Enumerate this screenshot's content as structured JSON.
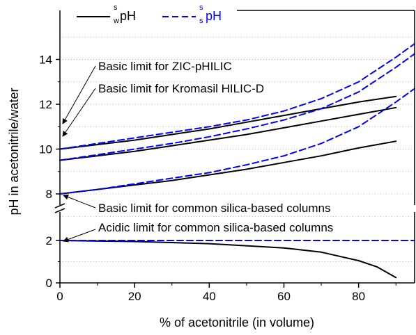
{
  "chart_data": {
    "type": "line",
    "xlabel": "% of acetonitrile (in volume)",
    "ylabel": "pH in acetonitrile/water",
    "xlim": [
      0,
      95
    ],
    "x_ticks": [
      "0",
      "20",
      "40",
      "60",
      "80"
    ],
    "y_ticks_upper": [
      "8",
      "10",
      "12",
      "14"
    ],
    "y_ticks_lower": [
      "0",
      "2"
    ],
    "axis_break": "y-axis broken between 2 and 8",
    "grid": "horizontal dotted lines",
    "legend": {
      "position": "top",
      "items": [
        {
          "sup": "s",
          "sub": "w",
          "text": "pH",
          "color": "#000000",
          "dash": "solid"
        },
        {
          "sup": "s",
          "sub": "s",
          "text": "pH",
          "color": "#0000ff",
          "dash": "dashed"
        }
      ]
    },
    "colors": {
      "wpH": "#000000",
      "spH": "#0000ff"
    },
    "series": [
      {
        "group": "swpH",
        "color": "#000000",
        "dash": "solid",
        "points": [
          [
            0,
            10.0
          ],
          [
            10,
            10.2
          ],
          [
            20,
            10.4
          ],
          [
            30,
            10.65
          ],
          [
            40,
            10.9
          ],
          [
            50,
            11.2
          ],
          [
            60,
            11.5
          ],
          [
            70,
            11.8
          ],
          [
            80,
            12.1
          ],
          [
            90,
            12.35
          ]
        ]
      },
      {
        "group": "swpH",
        "color": "#000000",
        "dash": "solid",
        "points": [
          [
            0,
            9.5
          ],
          [
            10,
            9.7
          ],
          [
            20,
            9.9
          ],
          [
            30,
            10.15
          ],
          [
            40,
            10.4
          ],
          [
            50,
            10.65
          ],
          [
            60,
            10.95
          ],
          [
            70,
            11.25
          ],
          [
            80,
            11.55
          ],
          [
            90,
            11.85
          ]
        ]
      },
      {
        "group": "swpH",
        "color": "#000000",
        "dash": "solid",
        "points": [
          [
            0,
            8.0
          ],
          [
            10,
            8.2
          ],
          [
            20,
            8.4
          ],
          [
            30,
            8.6
          ],
          [
            40,
            8.85
          ],
          [
            50,
            9.1
          ],
          [
            60,
            9.4
          ],
          [
            70,
            9.7
          ],
          [
            80,
            10.05
          ],
          [
            90,
            10.35
          ]
        ]
      },
      {
        "group": "swpH",
        "color": "#000000",
        "dash": "solid",
        "points": [
          [
            0,
            2.0
          ],
          [
            20,
            1.95
          ],
          [
            40,
            1.85
          ],
          [
            60,
            1.65
          ],
          [
            70,
            1.45
          ],
          [
            80,
            1.05
          ],
          [
            85,
            0.75
          ],
          [
            90,
            0.25
          ]
        ]
      },
      {
        "group": "sspH",
        "color": "#0000ff",
        "dash": "dashed",
        "points": [
          [
            0,
            10.0
          ],
          [
            10,
            10.25
          ],
          [
            20,
            10.5
          ],
          [
            30,
            10.75
          ],
          [
            40,
            11.0
          ],
          [
            50,
            11.3
          ],
          [
            60,
            11.7
          ],
          [
            70,
            12.25
          ],
          [
            80,
            13.0
          ],
          [
            90,
            14.1
          ],
          [
            95,
            14.7
          ]
        ]
      },
      {
        "group": "sspH",
        "color": "#0000ff",
        "dash": "dashed",
        "points": [
          [
            0,
            9.5
          ],
          [
            10,
            9.75
          ],
          [
            20,
            10.0
          ],
          [
            30,
            10.25
          ],
          [
            40,
            10.55
          ],
          [
            50,
            10.9
          ],
          [
            60,
            11.3
          ],
          [
            70,
            11.8
          ],
          [
            80,
            12.55
          ],
          [
            90,
            13.65
          ],
          [
            95,
            14.25
          ]
        ]
      },
      {
        "group": "sspH",
        "color": "#0000ff",
        "dash": "dashed",
        "points": [
          [
            0,
            8.0
          ],
          [
            10,
            8.2
          ],
          [
            20,
            8.45
          ],
          [
            30,
            8.7
          ],
          [
            40,
            8.95
          ],
          [
            50,
            9.3
          ],
          [
            60,
            9.7
          ],
          [
            70,
            10.25
          ],
          [
            80,
            11.0
          ],
          [
            90,
            12.1
          ],
          [
            95,
            12.7
          ]
        ]
      },
      {
        "group": "sspH",
        "color": "#0000ff",
        "dash": "dashed",
        "points": [
          [
            0,
            2.0
          ],
          [
            95,
            2.0
          ]
        ]
      }
    ],
    "annotations": [
      {
        "text": "Basic limit for ZIC-pHILIC",
        "arrow_to": [
          0,
          10.0
        ]
      },
      {
        "text": "Basic limit for Kromasil HILIC-D",
        "arrow_to": [
          0,
          9.5
        ]
      },
      {
        "text": "Basic limit for common silica-based columns",
        "arrow_to": [
          0,
          8.0
        ]
      },
      {
        "text": "Acidic limit for common silica-based columns",
        "arrow_to": [
          0,
          2.0
        ]
      }
    ]
  }
}
